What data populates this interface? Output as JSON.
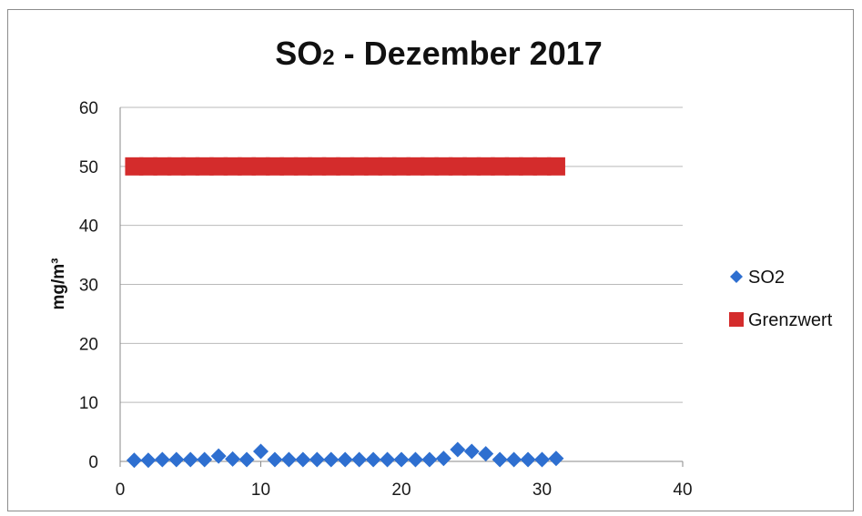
{
  "chart_data": {
    "type": "scatter",
    "title": "SO2 -  Dezember 2017",
    "title_main": "SO",
    "title_sub": "2",
    "title_rest": " -  Dezember 2017",
    "xlabel": "",
    "ylabel": "mg/m³",
    "xlim": [
      0,
      40
    ],
    "ylim": [
      0,
      60
    ],
    "xticks": [
      0,
      10,
      20,
      30,
      40
    ],
    "yticks": [
      0,
      10,
      20,
      30,
      40,
      50,
      60
    ],
    "grid": true,
    "legend_position": "right",
    "series": [
      {
        "name": "SO2",
        "marker": "diamond",
        "color": "#2e6fd0",
        "x": [
          1,
          2,
          3,
          4,
          5,
          6,
          7,
          8,
          9,
          10,
          11,
          12,
          13,
          14,
          15,
          16,
          17,
          18,
          19,
          20,
          21,
          22,
          23,
          24,
          25,
          26,
          27,
          28,
          29,
          30,
          31
        ],
        "y": [
          0.2,
          0.2,
          0.3,
          0.3,
          0.3,
          0.3,
          0.9,
          0.4,
          0.3,
          1.7,
          0.3,
          0.3,
          0.3,
          0.3,
          0.3,
          0.3,
          0.3,
          0.3,
          0.3,
          0.3,
          0.3,
          0.3,
          0.5,
          2.0,
          1.7,
          1.3,
          0.3,
          0.3,
          0.3,
          0.3,
          0.5
        ]
      },
      {
        "name": "Grenzwert",
        "marker": "square",
        "color": "#d42c2c",
        "x": [
          1,
          2,
          3,
          4,
          5,
          6,
          7,
          8,
          9,
          10,
          11,
          12,
          13,
          14,
          15,
          16,
          17,
          18,
          19,
          20,
          21,
          22,
          23,
          24,
          25,
          26,
          27,
          28,
          29,
          30,
          31
        ],
        "y": [
          50,
          50,
          50,
          50,
          50,
          50,
          50,
          50,
          50,
          50,
          50,
          50,
          50,
          50,
          50,
          50,
          50,
          50,
          50,
          50,
          50,
          50,
          50,
          50,
          50,
          50,
          50,
          50,
          50,
          50,
          50
        ]
      }
    ]
  }
}
